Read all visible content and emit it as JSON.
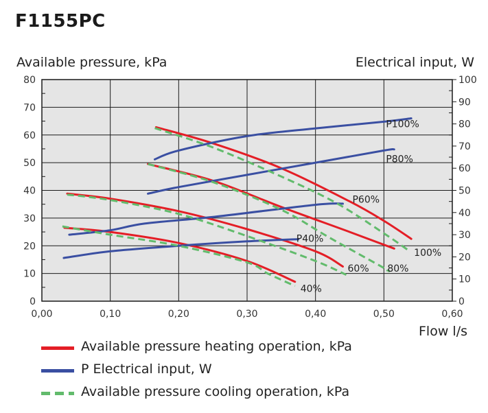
{
  "chart_data": {
    "type": "line",
    "title": "F1155PC",
    "xlabel": "Flow l/s",
    "ylabel": "Available pressure, kPa",
    "ylabel_right": "Electrical input, W",
    "xlim": [
      0,
      0.6
    ],
    "ylim": [
      0,
      80
    ],
    "ylim_right": [
      0,
      100
    ],
    "x_ticks": [
      "0,00",
      "0,10",
      "0,20",
      "0,30",
      "0,40",
      "0,50",
      "0,60"
    ],
    "y_ticks": [
      "0",
      "10",
      "20",
      "30",
      "40",
      "50",
      "60",
      "70",
      "80"
    ],
    "y_ticks_right": [
      "0",
      "10",
      "20",
      "30",
      "40",
      "50",
      "60",
      "70",
      "80",
      "90",
      "100"
    ],
    "grid": true,
    "legend_position": "bottom",
    "colors": {
      "heating": "#e41e26",
      "electrical": "#3a4fa2",
      "cooling": "#62bb6c",
      "plot_bg": "#e5e5e5"
    },
    "legend": [
      {
        "key": "heating",
        "label": "Available pressure heating operation, kPa",
        "style": "solid"
      },
      {
        "key": "electrical",
        "label": "P Electrical input, W",
        "style": "solid"
      },
      {
        "key": "cooling",
        "label": "Available pressure cooling operation, kPa",
        "style": "dashed"
      }
    ],
    "series": [
      {
        "group": "heating",
        "axis": "left",
        "points": [
          [
            0.167,
            62.8
          ],
          [
            0.25,
            57
          ],
          [
            0.35,
            48
          ],
          [
            0.45,
            36
          ],
          [
            0.5,
            29
          ],
          [
            0.54,
            22.5
          ]
        ]
      },
      {
        "group": "heating",
        "axis": "left",
        "points": [
          [
            0.155,
            49.5
          ],
          [
            0.25,
            43.5
          ],
          [
            0.35,
            34
          ],
          [
            0.45,
            25
          ],
          [
            0.515,
            19
          ]
        ]
      },
      {
        "group": "heating",
        "axis": "left",
        "points": [
          [
            0.037,
            38.8
          ],
          [
            0.1,
            37
          ],
          [
            0.2,
            32.5
          ],
          [
            0.3,
            26
          ],
          [
            0.4,
            18
          ],
          [
            0.44,
            12.5
          ]
        ]
      },
      {
        "group": "heating",
        "axis": "left",
        "points": [
          [
            0.033,
            26.5
          ],
          [
            0.1,
            25
          ],
          [
            0.2,
            21
          ],
          [
            0.3,
            14.5
          ],
          [
            0.37,
            7
          ]
        ]
      },
      {
        "group": "cooling",
        "axis": "left",
        "points": [
          [
            0.165,
            62.5
          ],
          [
            0.25,
            55.5
          ],
          [
            0.35,
            45
          ],
          [
            0.43,
            35.5
          ],
          [
            0.5,
            24.5
          ],
          [
            0.535,
            18.5
          ]
        ]
      },
      {
        "group": "cooling",
        "axis": "left",
        "points": [
          [
            0.155,
            49.5
          ],
          [
            0.25,
            43
          ],
          [
            0.35,
            33
          ],
          [
            0.42,
            23
          ],
          [
            0.5,
            12
          ],
          [
            0.505,
            11
          ]
        ]
      },
      {
        "group": "cooling",
        "axis": "left",
        "points": [
          [
            0.037,
            38.5
          ],
          [
            0.1,
            36.5
          ],
          [
            0.2,
            31.5
          ],
          [
            0.3,
            23.5
          ],
          [
            0.4,
            14.5
          ],
          [
            0.445,
            9.5
          ]
        ]
      },
      {
        "group": "cooling",
        "axis": "left",
        "points": [
          [
            0.03,
            27
          ],
          [
            0.1,
            24
          ],
          [
            0.2,
            20
          ],
          [
            0.3,
            14
          ],
          [
            0.33,
            10
          ],
          [
            0.37,
            5.5
          ]
        ]
      },
      {
        "group": "electrical",
        "axis": "right",
        "points": [
          [
            0.165,
            64
          ],
          [
            0.2,
            68
          ],
          [
            0.3,
            74.5
          ],
          [
            0.4,
            78
          ],
          [
            0.5,
            81
          ],
          [
            0.54,
            82.5
          ]
        ]
      },
      {
        "group": "electrical",
        "axis": "right",
        "points": [
          [
            0.155,
            48.5
          ],
          [
            0.2,
            51.5
          ],
          [
            0.3,
            57
          ],
          [
            0.4,
            62.5
          ],
          [
            0.5,
            68
          ],
          [
            0.515,
            68.5
          ]
        ]
      },
      {
        "group": "electrical",
        "axis": "right",
        "points": [
          [
            0.04,
            30
          ],
          [
            0.1,
            32
          ],
          [
            0.15,
            35
          ],
          [
            0.25,
            38
          ],
          [
            0.4,
            43.5
          ],
          [
            0.44,
            44
          ]
        ]
      },
      {
        "group": "electrical",
        "axis": "right",
        "points": [
          [
            0.032,
            19.5
          ],
          [
            0.1,
            22.5
          ],
          [
            0.2,
            25
          ],
          [
            0.3,
            27
          ],
          [
            0.375,
            28
          ]
        ]
      }
    ],
    "curve_labels": [
      {
        "text": "P100%",
        "x": 0.503,
        "y": 62.8
      },
      {
        "text": "P80%",
        "x": 0.503,
        "y": 50.2
      },
      {
        "text": "P60%",
        "x": 0.454,
        "y": 35.6
      },
      {
        "text": "P40%",
        "x": 0.372,
        "y": 21.4
      },
      {
        "text": "100%",
        "x": 0.544,
        "y": 16.3
      },
      {
        "text": "80%",
        "x": 0.505,
        "y": 10.6
      },
      {
        "text": "60%",
        "x": 0.447,
        "y": 10.7
      },
      {
        "text": "40%",
        "x": 0.378,
        "y": 3.4
      }
    ]
  }
}
